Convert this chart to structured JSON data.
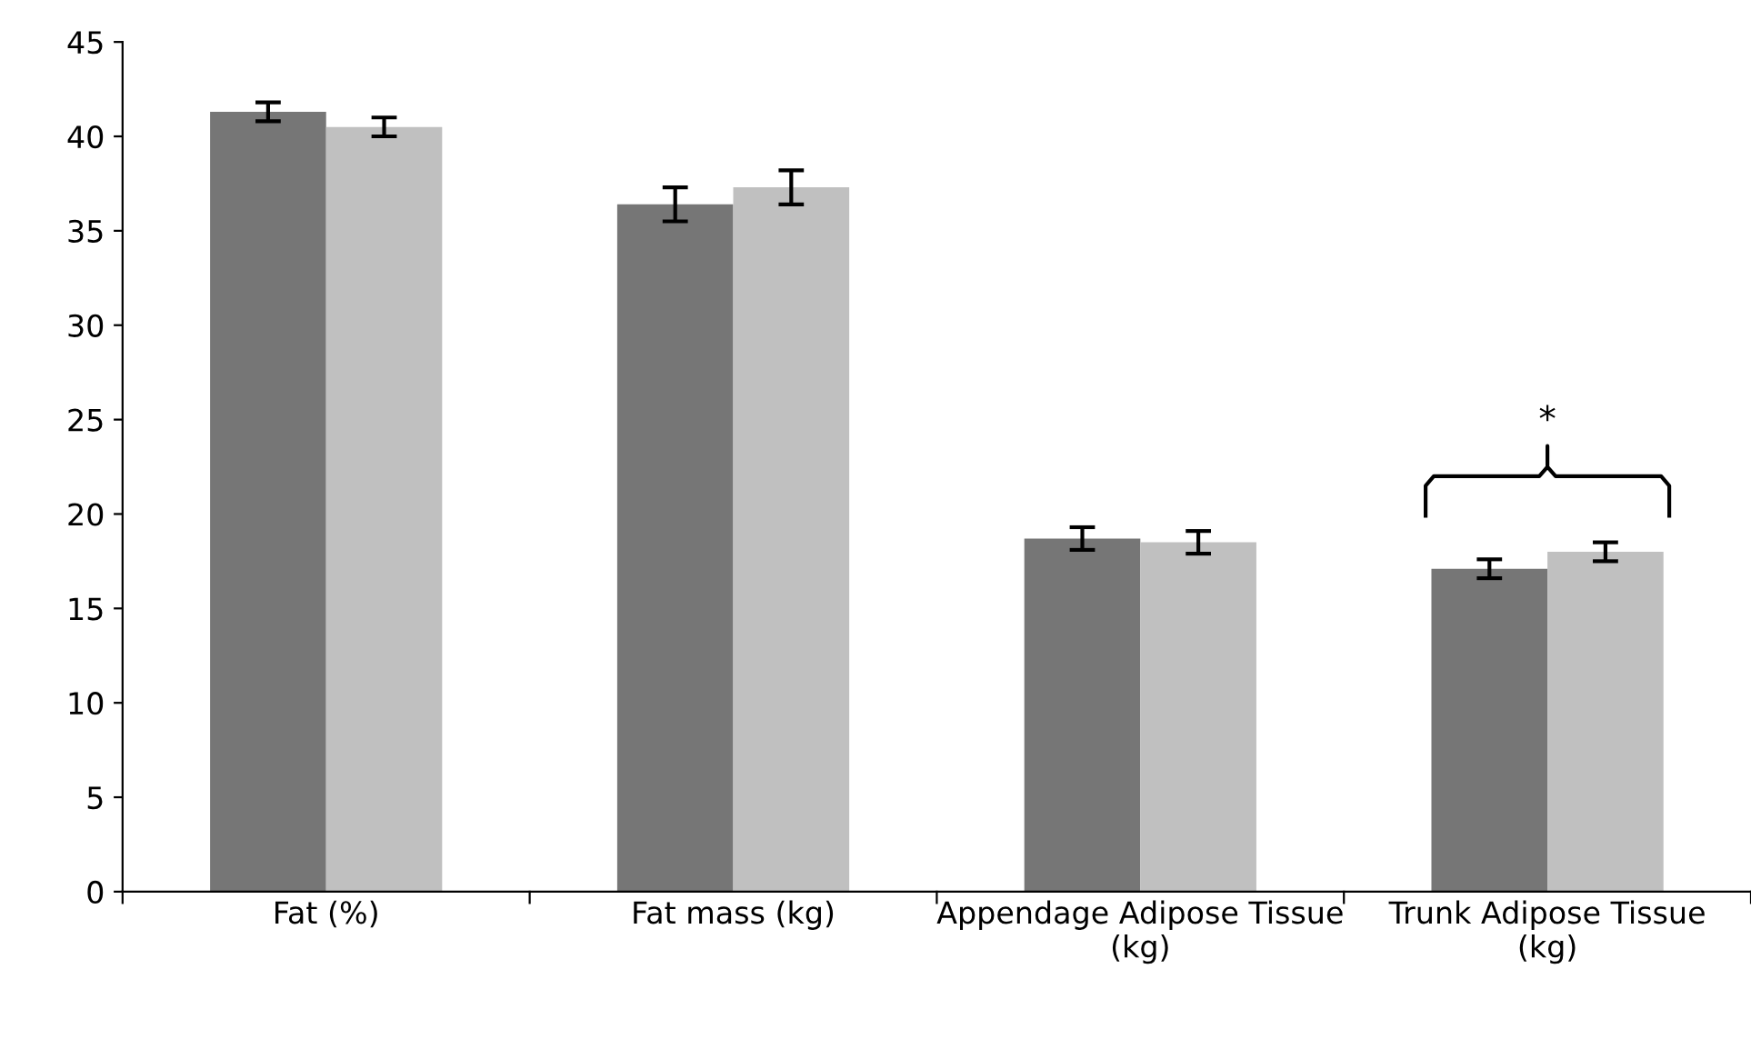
{
  "chart_data": {
    "type": "bar",
    "categories": [
      "Fat (%)",
      "Fat mass (kg)",
      "Appendage Adipose Tissue (kg)",
      "Trunk Adipose Tissue (kg)"
    ],
    "series": [
      {
        "color": "#767676",
        "values": [
          41.3,
          36.4,
          18.7,
          17.1
        ],
        "errors": [
          0.5,
          0.9,
          0.6,
          0.5
        ]
      },
      {
        "color": "#c0c0c0",
        "values": [
          40.5,
          37.3,
          18.5,
          18.0
        ],
        "errors": [
          0.5,
          0.9,
          0.6,
          0.5
        ]
      }
    ],
    "ylim": [
      0,
      45
    ],
    "yticks": [
      0,
      5,
      10,
      15,
      20,
      25,
      30,
      35,
      40,
      45
    ],
    "grid": false,
    "legend": false,
    "annotations": [
      "*"
    ]
  }
}
